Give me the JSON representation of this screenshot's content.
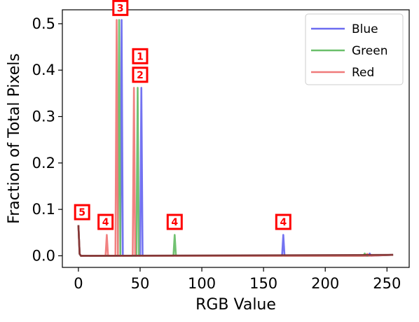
{
  "chart_data": {
    "type": "line",
    "xlabel": "RGB Value",
    "ylabel": "Fraction of Total Pixels",
    "xlim": [
      -13,
      268
    ],
    "ylim": [
      -0.025,
      0.53
    ],
    "x_ticks": [
      0,
      50,
      100,
      150,
      200,
      250
    ],
    "y_ticks": [
      0.0,
      0.1,
      0.2,
      0.3,
      0.4,
      0.5
    ],
    "x_tick_labels": [
      "0",
      "50",
      "100",
      "150",
      "200",
      "250"
    ],
    "y_tick_labels": [
      "0.0",
      "0.1",
      "0.2",
      "0.3",
      "0.4",
      "0.5"
    ],
    "legend_position": "top-right",
    "series": [
      {
        "name": "Blue",
        "color": "#6b6bf0",
        "points": [
          [
            0,
            0.066
          ],
          [
            1,
            0.004
          ],
          [
            2,
            0.0
          ],
          [
            34,
            0.0
          ],
          [
            35,
            0.508
          ],
          [
            36,
            0.0
          ],
          [
            50,
            0.0
          ],
          [
            51,
            0.362
          ],
          [
            52,
            0.0
          ],
          [
            165,
            0.0
          ],
          [
            166,
            0.045
          ],
          [
            167,
            0.0
          ],
          [
            235,
            0.0
          ],
          [
            236,
            0.005
          ],
          [
            237,
            0.0
          ],
          [
            255,
            0.002
          ]
        ]
      },
      {
        "name": "Green",
        "color": "#6abf6a",
        "points": [
          [
            0,
            0.066
          ],
          [
            1,
            0.004
          ],
          [
            2,
            0.0
          ],
          [
            32,
            0.0
          ],
          [
            33,
            0.508
          ],
          [
            34,
            0.0
          ],
          [
            47,
            0.0
          ],
          [
            48,
            0.362
          ],
          [
            49,
            0.0
          ],
          [
            77,
            0.0
          ],
          [
            78,
            0.045
          ],
          [
            79,
            0.0
          ],
          [
            231,
            0.0
          ],
          [
            232,
            0.005
          ],
          [
            233,
            0.0
          ],
          [
            255,
            0.002
          ]
        ]
      },
      {
        "name": "Red",
        "color": "#f07a7a",
        "points": [
          [
            0,
            0.066
          ],
          [
            1,
            0.004
          ],
          [
            2,
            0.0
          ],
          [
            22,
            0.0
          ],
          [
            23,
            0.045
          ],
          [
            24,
            0.0
          ],
          [
            30,
            0.0
          ],
          [
            31,
            0.508
          ],
          [
            32,
            0.0
          ],
          [
            44,
            0.0
          ],
          [
            45,
            0.362
          ],
          [
            46,
            0.0
          ],
          [
            233,
            0.0
          ],
          [
            234,
            0.004
          ],
          [
            235,
            0.0
          ],
          [
            255,
            0.002
          ]
        ]
      }
    ],
    "annotations": [
      {
        "label": "3",
        "x": 34,
        "y": 0.534
      },
      {
        "label": "1",
        "x": 50,
        "y": 0.43
      },
      {
        "label": "2",
        "x": 50,
        "y": 0.39
      },
      {
        "label": "5",
        "x": 3,
        "y": 0.094
      },
      {
        "label": "4",
        "x": 22,
        "y": 0.073
      },
      {
        "label": "4",
        "x": 78,
        "y": 0.073
      },
      {
        "label": "4",
        "x": 166,
        "y": 0.073
      }
    ]
  }
}
